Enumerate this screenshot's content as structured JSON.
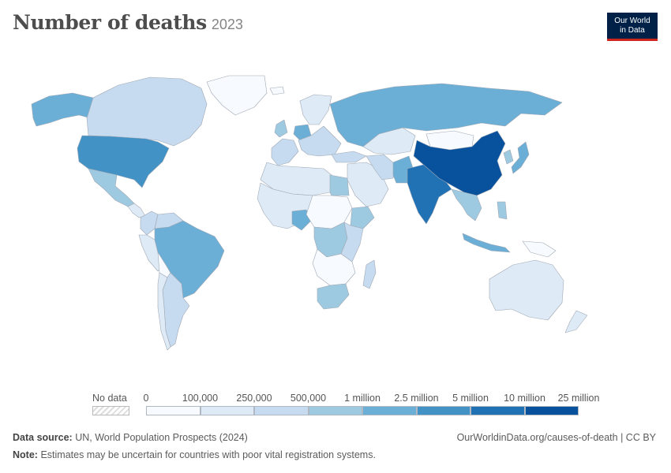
{
  "header": {
    "title": "Number of deaths",
    "year": "2023",
    "logo_line1": "Our World",
    "logo_line2": "in Data"
  },
  "legend": {
    "no_data_label": "No data",
    "bins": [
      {
        "label": "0",
        "color": "#f7fbff"
      },
      {
        "label": "100,000",
        "color": "#deebf7"
      },
      {
        "label": "250,000",
        "color": "#c6dbef"
      },
      {
        "label": "500,000",
        "color": "#9ecae1"
      },
      {
        "label": "1 million",
        "color": "#6baed6"
      },
      {
        "label": "2.5 million",
        "color": "#4292c6"
      },
      {
        "label": "5 million",
        "color": "#2171b5"
      },
      {
        "label": "10 million",
        "color": "#08519c"
      }
    ],
    "last_label": "25 million"
  },
  "footer": {
    "source_label": "Data source:",
    "source_text": "UN, World Population Prospects (2024)",
    "url": "OurWorldinData.org/causes-of-death | CC BY",
    "note_label": "Note:",
    "note_text": "Estimates may be uncertain for countries with poor vital registration systems."
  },
  "map_regions": [
    {
      "name": "alaska",
      "color": "#6baed6"
    },
    {
      "name": "canada",
      "color": "#c6dbef"
    },
    {
      "name": "greenland",
      "color": "#f7fbff"
    },
    {
      "name": "united-states",
      "color": "#4292c6"
    },
    {
      "name": "mexico",
      "color": "#9ecae1"
    },
    {
      "name": "central-america",
      "color": "#deebf7"
    },
    {
      "name": "colombia",
      "color": "#c6dbef"
    },
    {
      "name": "venezuela",
      "color": "#c6dbef"
    },
    {
      "name": "peru",
      "color": "#deebf7"
    },
    {
      "name": "brazil",
      "color": "#6baed6"
    },
    {
      "name": "bolivia",
      "color": "#f7fbff"
    },
    {
      "name": "argentina",
      "color": "#c6dbef"
    },
    {
      "name": "chile",
      "color": "#deebf7"
    },
    {
      "name": "iceland",
      "color": "#f7fbff"
    },
    {
      "name": "uk",
      "color": "#9ecae1"
    },
    {
      "name": "scandinavia",
      "color": "#deebf7"
    },
    {
      "name": "western-europe",
      "color": "#c6dbef"
    },
    {
      "name": "germany",
      "color": "#6baed6"
    },
    {
      "name": "eastern-europe",
      "color": "#c6dbef"
    },
    {
      "name": "russia",
      "color": "#6baed6"
    },
    {
      "name": "kazakhstan",
      "color": "#deebf7"
    },
    {
      "name": "turkey",
      "color": "#c6dbef"
    },
    {
      "name": "middle-east",
      "color": "#deebf7"
    },
    {
      "name": "iran",
      "color": "#c6dbef"
    },
    {
      "name": "pakistan",
      "color": "#6baed6"
    },
    {
      "name": "india",
      "color": "#2171b5"
    },
    {
      "name": "china",
      "color": "#08519c"
    },
    {
      "name": "mongolia",
      "color": "#f7fbff"
    },
    {
      "name": "japan",
      "color": "#6baed6"
    },
    {
      "name": "korea",
      "color": "#9ecae1"
    },
    {
      "name": "southeast-asia",
      "color": "#9ecae1"
    },
    {
      "name": "indonesia",
      "color": "#6baed6"
    },
    {
      "name": "philippines",
      "color": "#9ecae1"
    },
    {
      "name": "papua",
      "color": "#f7fbff"
    },
    {
      "name": "australia",
      "color": "#deebf7"
    },
    {
      "name": "new-zealand",
      "color": "#deebf7"
    },
    {
      "name": "north-africa",
      "color": "#deebf7"
    },
    {
      "name": "egypt",
      "color": "#9ecae1"
    },
    {
      "name": "west-africa",
      "color": "#deebf7"
    },
    {
      "name": "nigeria",
      "color": "#6baed6"
    },
    {
      "name": "central-africa",
      "color": "#f7fbff"
    },
    {
      "name": "ethiopia",
      "color": "#9ecae1"
    },
    {
      "name": "congo-drc",
      "color": "#9ecae1"
    },
    {
      "name": "east-africa",
      "color": "#c6dbef"
    },
    {
      "name": "southern-africa",
      "color": "#f7fbff"
    },
    {
      "name": "south-africa",
      "color": "#9ecae1"
    },
    {
      "name": "madagascar",
      "color": "#c6dbef"
    }
  ]
}
